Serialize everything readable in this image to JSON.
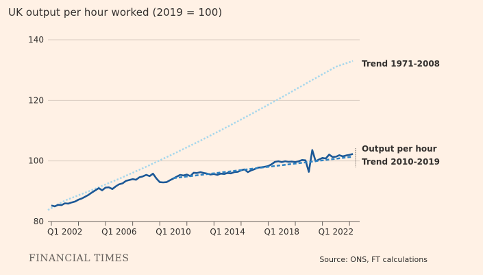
{
  "title": "UK output per hour worked (2019 = 100)",
  "brand": "FINANCIAL TIMES",
  "source": "Source: ONS, FT calculations",
  "chart_data": {
    "type": "line",
    "ylim": [
      80,
      140
    ],
    "yticks": [
      80,
      100,
      120,
      140
    ],
    "xlim": [
      2000.75,
      2023.75
    ],
    "xticks": [
      {
        "label": "Q1 2002",
        "x": 2002
      },
      {
        "label": "Q1 2006",
        "x": 2006
      },
      {
        "label": "Q1 2010",
        "x": 2010
      },
      {
        "label": "Q1 2014",
        "x": 2014
      },
      {
        "label": "Q1 2018",
        "x": 2018
      },
      {
        "label": "Q1 2022",
        "x": 2022
      }
    ],
    "grid": "horizontal",
    "series": [
      {
        "name": "Trend 1971-2008",
        "style": "dotted",
        "color": "#A6D7EC",
        "x": [
          2000.75,
          2002,
          2004,
          2006,
          2008,
          2010,
          2012,
          2014,
          2016,
          2018,
          2020,
          2022,
          2023.25
        ],
        "y": [
          83.8,
          86.9,
          90.4,
          94.1,
          98.1,
          102.3,
          106.7,
          111.3,
          116.1,
          121.0,
          126.1,
          131.1,
          133.0
        ]
      },
      {
        "name": "Output per hour",
        "style": "solid",
        "color": "#1C5896",
        "x": [
          2001.0,
          2001.25,
          2001.5,
          2001.75,
          2002.0,
          2002.25,
          2002.5,
          2002.75,
          2003.0,
          2003.25,
          2003.5,
          2003.75,
          2004.0,
          2004.25,
          2004.5,
          2004.75,
          2005.0,
          2005.25,
          2005.5,
          2005.75,
          2006.0,
          2006.25,
          2006.5,
          2006.75,
          2007.0,
          2007.25,
          2007.5,
          2007.75,
          2008.0,
          2008.25,
          2008.5,
          2008.75,
          2009.0,
          2009.25,
          2009.5,
          2009.75,
          2010.0,
          2010.25,
          2010.5,
          2010.75,
          2011.0,
          2011.25,
          2011.5,
          2011.75,
          2012.0,
          2012.25,
          2012.5,
          2012.75,
          2013.0,
          2013.25,
          2013.5,
          2013.75,
          2014.0,
          2014.25,
          2014.5,
          2014.75,
          2015.0,
          2015.25,
          2015.5,
          2015.75,
          2016.0,
          2016.25,
          2016.5,
          2016.75,
          2017.0,
          2017.25,
          2017.5,
          2017.75,
          2018.0,
          2018.25,
          2018.5,
          2018.75,
          2019.0,
          2019.25,
          2019.5,
          2019.75,
          2020.0,
          2020.25,
          2020.5,
          2020.75,
          2021.0,
          2021.25,
          2021.5,
          2021.75,
          2022.0,
          2022.25,
          2022.5,
          2022.75,
          2023.0,
          2023.25
        ],
        "y": [
          85.3,
          85.0,
          85.5,
          85.4,
          86.0,
          85.9,
          86.3,
          86.6,
          87.2,
          87.6,
          88.2,
          88.8,
          89.6,
          90.3,
          91.0,
          90.3,
          91.2,
          91.3,
          90.7,
          91.6,
          92.3,
          92.6,
          93.4,
          93.7,
          94.0,
          93.8,
          94.6,
          94.9,
          95.4,
          95.0,
          95.8,
          94.2,
          93.0,
          92.9,
          93.0,
          93.6,
          94.2,
          94.8,
          95.4,
          95.2,
          95.5,
          95.0,
          96.1,
          96.0,
          96.3,
          96.0,
          95.8,
          95.5,
          95.7,
          95.4,
          95.8,
          95.7,
          96.0,
          95.9,
          96.3,
          96.4,
          96.9,
          97.2,
          96.3,
          96.9,
          97.3,
          97.8,
          97.9,
          98.1,
          98.3,
          98.9,
          99.7,
          99.9,
          99.6,
          99.9,
          99.7,
          99.8,
          99.6,
          99.9,
          100.3,
          100.2,
          96.4,
          103.6,
          99.9,
          100.5,
          101.0,
          100.8,
          102.1,
          101.3,
          101.4,
          101.9,
          101.5,
          101.8,
          102.0,
          102.3
        ]
      },
      {
        "name": "Trend 2010-2019",
        "style": "dashed",
        "color": "#2E82C2",
        "x": [
          2010.0,
          2023.25
        ],
        "y": [
          94.3,
          101.4
        ]
      }
    ],
    "labels": [
      {
        "text": "Trend 1971-2008"
      },
      {
        "text": "Output per hour"
      },
      {
        "text": "Trend 2010-2019"
      }
    ]
  }
}
